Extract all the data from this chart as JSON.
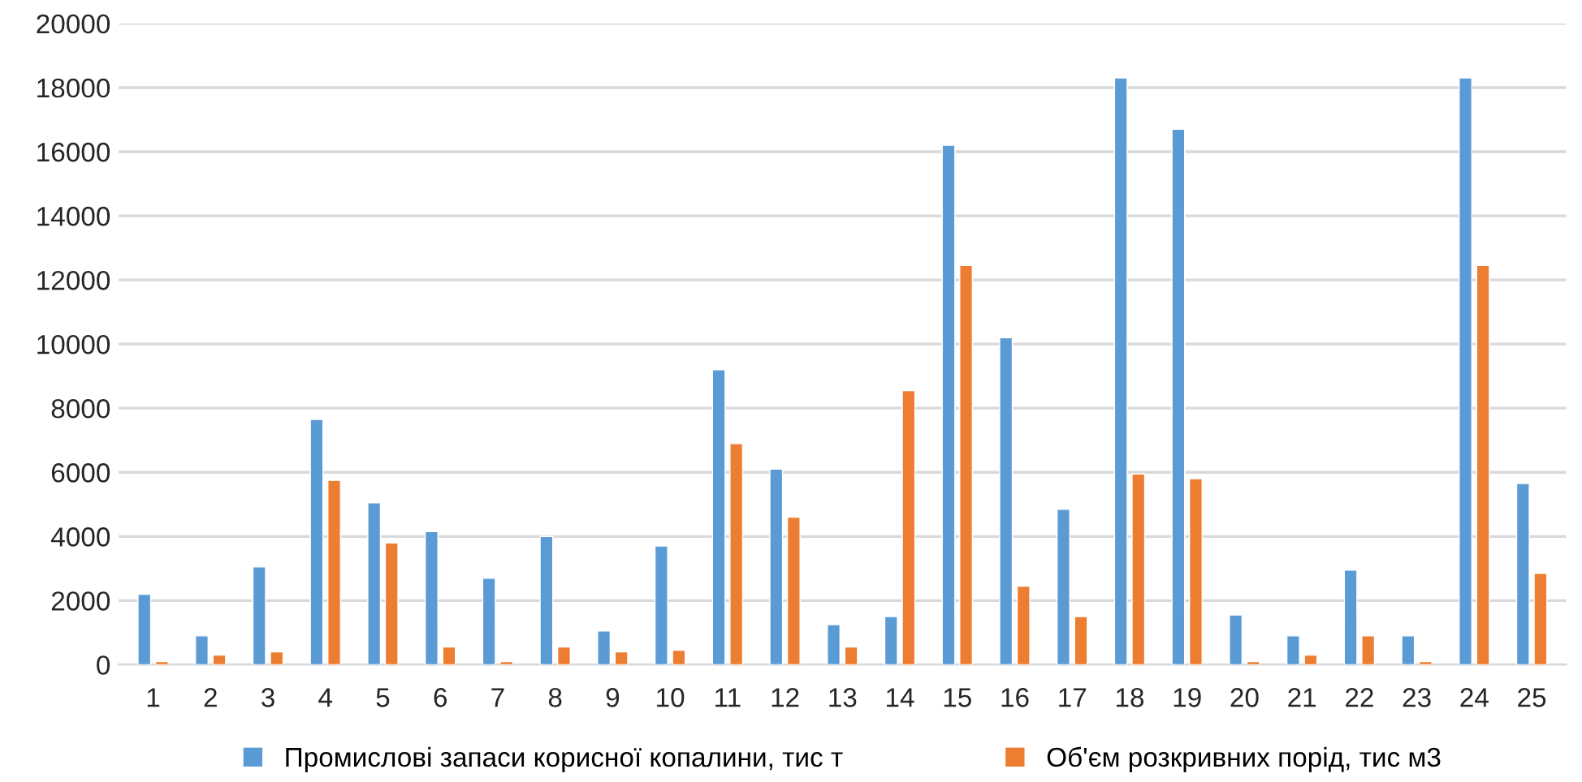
{
  "chart_data": {
    "type": "bar",
    "categories": [
      "1",
      "2",
      "3",
      "4",
      "5",
      "6",
      "7",
      "8",
      "9",
      "10",
      "11",
      "12",
      "13",
      "14",
      "15",
      "16",
      "17",
      "18",
      "19",
      "20",
      "21",
      "22",
      "23",
      "24",
      "25"
    ],
    "series": [
      {
        "name": "Промислові запаси корисної копалини, тис т",
        "color": "#5b9bd5",
        "values": [
          2200,
          900,
          3050,
          7650,
          5050,
          4150,
          2700,
          4000,
          1050,
          3700,
          9200,
          6100,
          1250,
          1500,
          16200,
          10200,
          4850,
          18300,
          16700,
          1550,
          900,
          2950,
          900,
          18300,
          5650
        ]
      },
      {
        "name": "Об'єм розкривних порід, тис м3",
        "color": "#ed7d31",
        "values": [
          100,
          300,
          400,
          5750,
          3800,
          550,
          100,
          550,
          400,
          450,
          6900,
          4600,
          550,
          8550,
          12450,
          2450,
          1500,
          5950,
          5800,
          100,
          300,
          900,
          100,
          12450,
          2850
        ]
      }
    ],
    "ylim": [
      0,
      20000
    ],
    "yticks": [
      0,
      2000,
      4000,
      6000,
      8000,
      10000,
      12000,
      14000,
      16000,
      18000,
      20000
    ],
    "grid": "y",
    "legend": "bottom"
  }
}
